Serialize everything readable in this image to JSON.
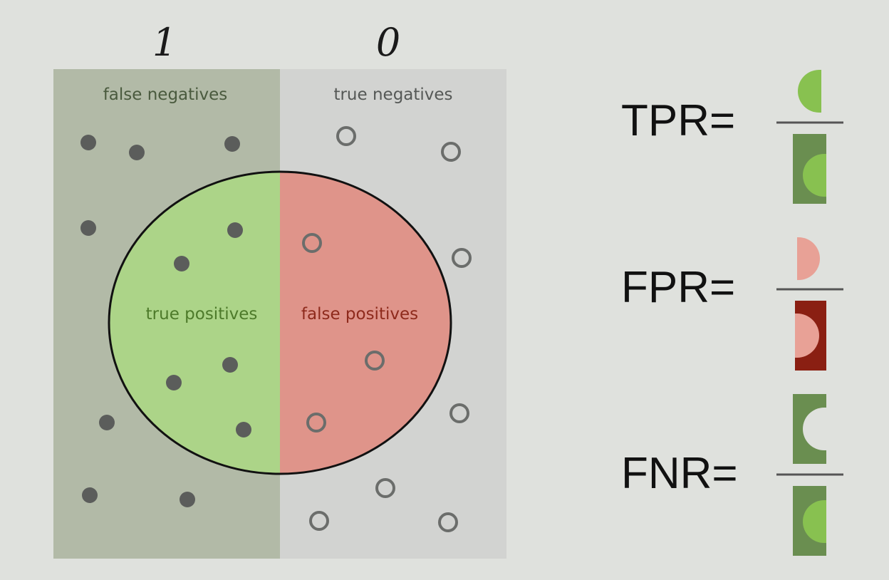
{
  "columns": {
    "left": "1",
    "right": "0"
  },
  "regions": {
    "false_negatives": "false negatives",
    "true_negatives": "true negatives",
    "true_positives": "true positives",
    "false_positives": "false positives"
  },
  "formulas": [
    {
      "label": "TPR="
    },
    {
      "label": "FPR="
    },
    {
      "label": "FNR="
    }
  ],
  "colors": {
    "background": "#dfe1dd",
    "relevant_region": "#b2baa7",
    "irrelevant_region": "#d2d3d1",
    "true_positive_fill": "#acd488",
    "false_positive_fill": "#df948a",
    "dark_green": "#6a8e50",
    "light_green": "#88c150",
    "dark_red": "#8a1f12",
    "light_red": "#e8a196",
    "dot": "#5b5d5b"
  },
  "icons": [
    "filled-dot-icon",
    "hollow-dot-icon",
    "half-circle-icon"
  ]
}
